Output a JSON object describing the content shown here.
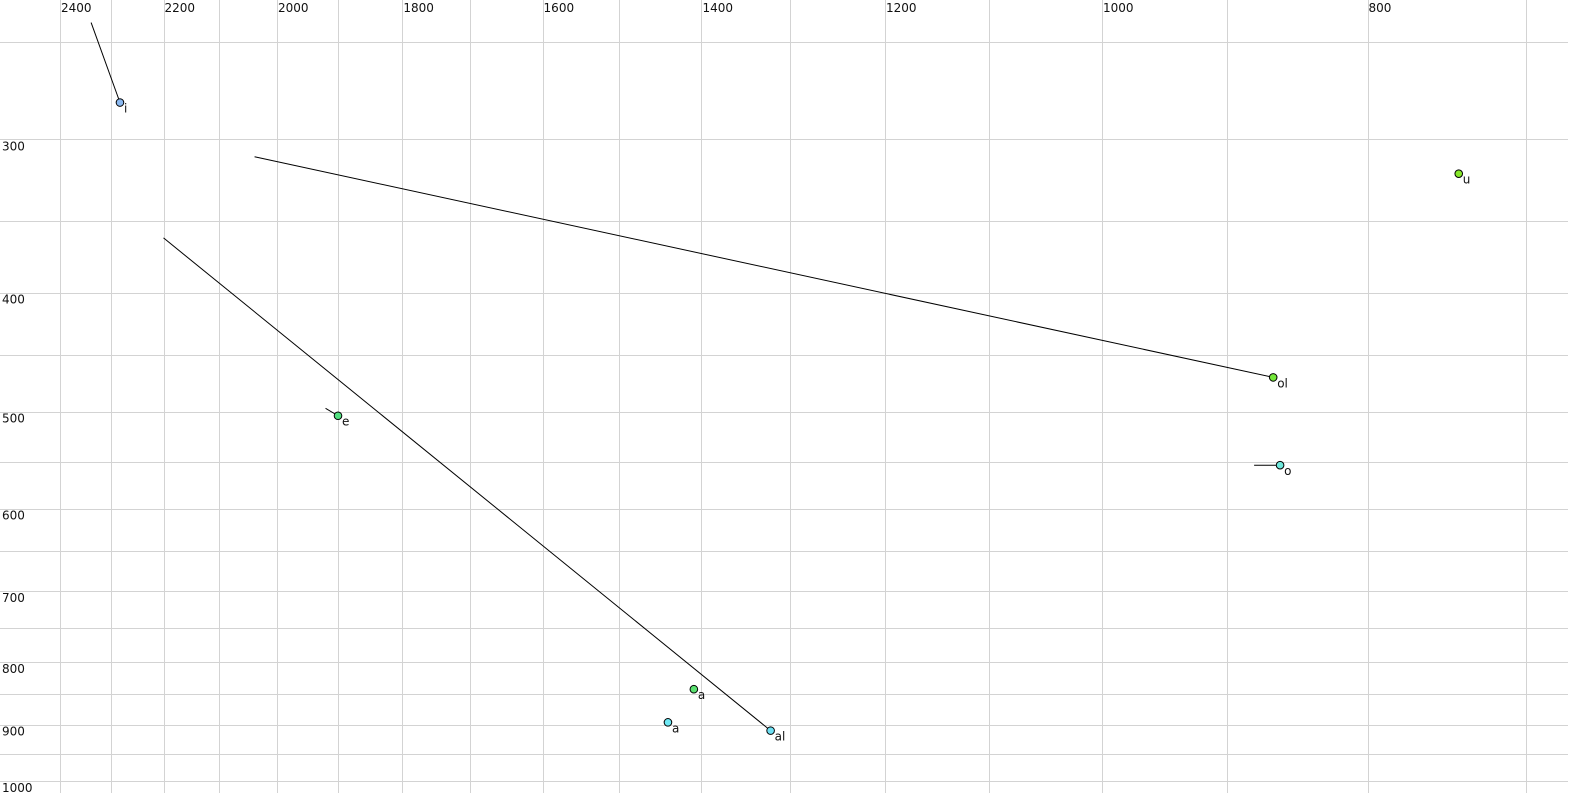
{
  "chart_data": {
    "type": "scatter",
    "title": "",
    "xlabel": "",
    "ylabel": "",
    "x_axis": {
      "quantity": "F2",
      "scale": "log",
      "reversed": true,
      "position": "top",
      "range": [
        2524,
        676
      ],
      "major_ticks": [
        2400,
        2200,
        2000,
        1800,
        1600,
        1400,
        1200,
        1000,
        800
      ],
      "minor_ticks": [
        2300,
        2100,
        1900,
        1700,
        1500,
        1300,
        1100,
        900,
        700
      ]
    },
    "y_axis": {
      "quantity": "F1",
      "scale": "log",
      "reversed": false,
      "position": "left",
      "range": [
        231,
        1023
      ],
      "major_ticks": [
        300,
        400,
        500,
        600,
        700,
        800,
        900,
        1000
      ],
      "minor_ticks": [
        250,
        350,
        450,
        550,
        650,
        750,
        850,
        950
      ]
    },
    "grid": true,
    "legend": "none",
    "points": [
      {
        "label": "i",
        "f2": 2282,
        "f1": 280,
        "color": "#8ab8f0",
        "label_color": "#111111",
        "trajectory_start": {
          "f2": 2338,
          "f1": 241
        }
      },
      {
        "label": "u",
        "f2": 741,
        "f1": 320,
        "color": "#86e82a",
        "label_color": "#111111"
      },
      {
        "label": "ol",
        "f2": 866,
        "f1": 469,
        "color": "#74e83a",
        "label_color": "#111111",
        "trajectory_start": {
          "f2": 2038,
          "f1": 310
        }
      },
      {
        "label": "o",
        "f2": 861,
        "f1": 553,
        "color": "#6ee8dc",
        "label_color": "#111111",
        "trajectory_start": {
          "f2": 880,
          "f1": 553
        }
      },
      {
        "label": "e",
        "f2": 1900,
        "f1": 504,
        "color": "#52e080",
        "label_color": "#111111",
        "trajectory_start": {
          "f2": 1920,
          "f1": 497
        }
      },
      {
        "label": "a",
        "f2": 1409,
        "f1": 842,
        "color": "#5ae070",
        "label_color": "#808080"
      },
      {
        "label": "a",
        "f2": 1440,
        "f1": 896,
        "color": "#6ee8f4",
        "label_color": "#111111"
      },
      {
        "label": "al",
        "f2": 1321,
        "f1": 910,
        "color": "#6ee0f4",
        "label_color": "#111111",
        "trajectory_start": {
          "f2": 2200,
          "f1": 361
        }
      }
    ]
  }
}
